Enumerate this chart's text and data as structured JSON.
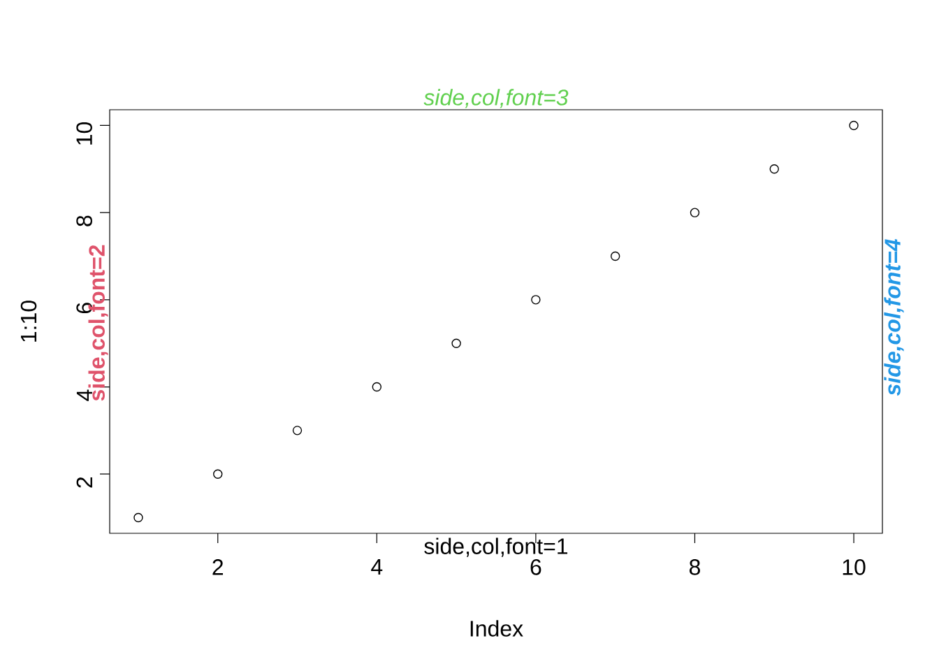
{
  "chart_data": {
    "type": "scatter",
    "xlabel": "Index",
    "ylabel": "1:10",
    "x": [
      1,
      2,
      3,
      4,
      5,
      6,
      7,
      8,
      9,
      10
    ],
    "values": [
      1,
      2,
      3,
      4,
      5,
      6,
      7,
      8,
      9,
      10
    ],
    "color": "#000000",
    "marker": "circle",
    "xlim": [
      0.64,
      10.36
    ],
    "ylim": [
      0.64,
      10.36
    ],
    "xticks": [
      2,
      4,
      6,
      8,
      10
    ],
    "yticks": [
      2,
      4,
      6,
      8,
      10
    ],
    "annotations": [
      "side,col,font=1",
      "side,col,font=2",
      "side,col,font=3",
      "side,col,font=4"
    ]
  }
}
